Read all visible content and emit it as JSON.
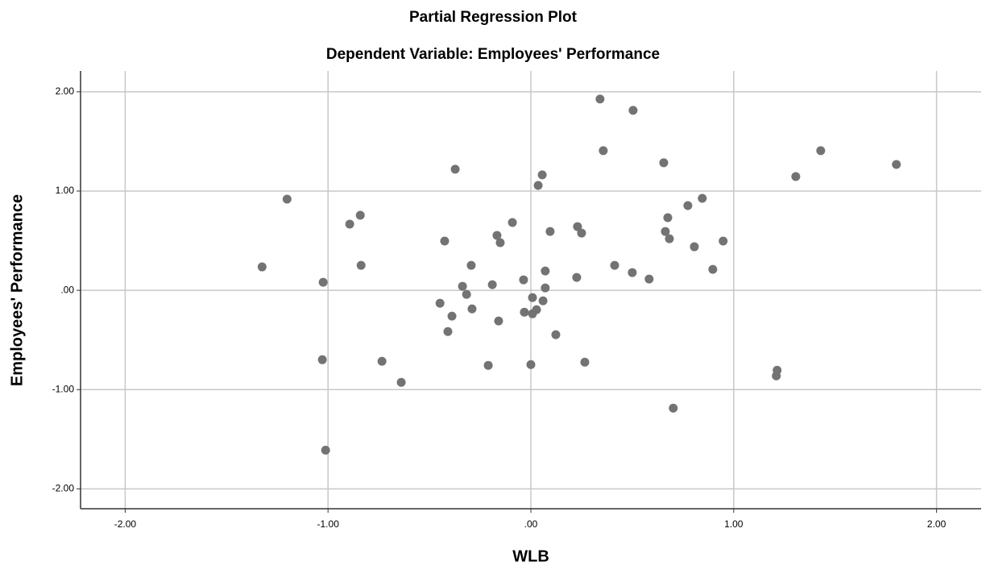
{
  "chart_data": {
    "type": "scatter",
    "title": "Partial Regression Plot",
    "subtitle": "Dependent Variable: Employees' Performance",
    "x_label": "WLB",
    "y_label": "Employees' Performance",
    "color": "#737373",
    "grid": true,
    "xlim": [
      -2.22,
      2.22
    ],
    "ylim": [
      -2.2,
      2.21
    ],
    "xticks": [
      {
        "value": -2,
        "label": "-2.00"
      },
      {
        "value": -1,
        "label": "-1.00"
      },
      {
        "value": 0,
        "label": ".00"
      },
      {
        "value": 1,
        "label": "1.00"
      },
      {
        "value": 2,
        "label": "2.00"
      }
    ],
    "yticks": [
      {
        "value": -2,
        "label": "-2.00"
      },
      {
        "value": -1,
        "label": "-1.00"
      },
      {
        "value": 0,
        "label": ".00"
      },
      {
        "value": 1,
        "label": "1.00"
      },
      {
        "value": 2,
        "label": "2.00"
      }
    ],
    "x": [
      -1.325,
      -1.202,
      -1.024,
      -1.028,
      -1.012,
      -0.893,
      -0.841,
      -0.837,
      -0.734,
      -0.639,
      -0.448,
      -0.425,
      -0.409,
      -0.389,
      -0.373,
      -0.337,
      -0.317,
      -0.294,
      -0.29,
      -0.21,
      -0.19,
      -0.167,
      -0.159,
      -0.151,
      -0.091,
      -0.036,
      -0.032,
      0.0,
      0.008,
      0.008,
      0.028,
      0.036,
      0.056,
      0.06,
      0.071,
      0.071,
      0.095,
      0.123,
      0.226,
      0.23,
      0.25,
      0.266,
      0.341,
      0.357,
      0.413,
      0.5,
      0.504,
      0.583,
      0.655,
      0.663,
      0.675,
      0.683,
      0.702,
      0.774,
      0.806,
      0.845,
      0.897,
      0.948,
      1.214,
      1.21,
      1.306,
      1.429,
      1.802
    ],
    "values": [
      0.236,
      0.919,
      0.081,
      -0.699,
      -1.61,
      0.667,
      0.756,
      0.252,
      -0.715,
      -0.927,
      -0.13,
      0.496,
      -0.415,
      -0.26,
      1.22,
      0.041,
      -0.041,
      0.252,
      -0.187,
      -0.756,
      0.057,
      0.553,
      -0.309,
      0.48,
      0.683,
      0.106,
      -0.22,
      -0.748,
      -0.073,
      -0.236,
      -0.195,
      1.057,
      1.163,
      -0.106,
      0.024,
      0.195,
      0.593,
      -0.447,
      0.13,
      0.642,
      0.577,
      -0.724,
      1.927,
      1.407,
      0.252,
      0.179,
      1.813,
      0.114,
      1.285,
      0.593,
      0.732,
      0.52,
      -1.187,
      0.854,
      0.439,
      0.927,
      0.211,
      0.496,
      -0.805,
      -0.862,
      1.146,
      1.407,
      1.268
    ]
  }
}
